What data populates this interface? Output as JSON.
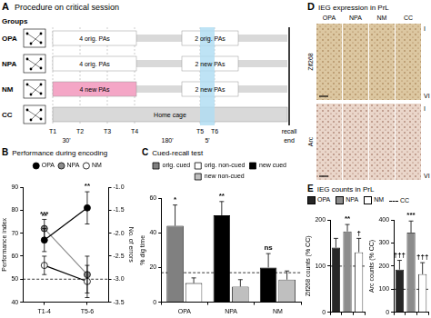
{
  "panels": {
    "A": {
      "label": "A",
      "title": "Procedure on critical session",
      "groups_label": "Groups",
      "rows": [
        {
          "group": "OPA",
          "segments": [
            {
              "text": "4 orig. PAs"
            },
            {
              "text": "2 orig. PAs"
            }
          ]
        },
        {
          "group": "NPA",
          "segments": [
            {
              "text": "4 orig. PAs"
            },
            {
              "text": "2 new PAs"
            }
          ]
        },
        {
          "group": "NM",
          "segments": [
            {
              "text": "4 new PAs",
              "color": "#f4a6c6"
            },
            {
              "text": "2 new PAs"
            }
          ]
        },
        {
          "group": "CC",
          "segments": [
            {
              "text": "Home cage",
              "color": "#d9d9d9"
            }
          ]
        }
      ],
      "time_points": [
        "T1",
        "T2",
        "T3",
        "T4",
        "T5",
        "T6"
      ],
      "intervals": [
        "30'",
        "180'",
        "5'"
      ],
      "end_labels": [
        "recall",
        "end"
      ]
    },
    "D": {
      "label": "D",
      "title": "IEG expression in PrL",
      "columns": [
        "OPA",
        "NPA",
        "NM",
        "CC"
      ],
      "rows": [
        "Zif268",
        "Arc"
      ],
      "layers": [
        "I",
        "VI"
      ]
    },
    "E": {
      "label": "E",
      "title": "IEG counts in PrL",
      "legend_items": [
        {
          "name": "OPA",
          "color": "#262626"
        },
        {
          "name": "NPA",
          "color": "#8c8c8c"
        },
        {
          "name": "NM",
          "color": "#ffffff"
        },
        {
          "name": "CC",
          "line_style": "dashed"
        }
      ]
    }
  },
  "chart_data": [
    {
      "label": "B",
      "type": "line",
      "title": "Performance during encoding",
      "categories": [
        "T1-4",
        "T5-6"
      ],
      "series": [
        {
          "name": "OPA",
          "color": "#000000",
          "marker": "circle",
          "values": [
            67,
            81
          ],
          "errors": [
            5,
            7
          ]
        },
        {
          "name": "NPA",
          "color": "#8c8c8c",
          "marker": "circle",
          "values": [
            72,
            52
          ],
          "errors": [
            4,
            8
          ]
        },
        {
          "name": "NM",
          "color": "#ffffff",
          "marker": "circle",
          "values": [
            56,
            49
          ],
          "errors": [
            4,
            7
          ]
        }
      ],
      "y_label": "Performance index",
      "ylim": [
        40,
        90
      ],
      "yticks": [
        40,
        50,
        60,
        70,
        80,
        90
      ],
      "y2_label": "No. of errors",
      "y2lim": [
        -3.5,
        -1
      ],
      "y2ticks": [
        -3.5,
        {
          "value": -3,
          "label": "-3.0"
        },
        -2.5,
        {
          "value": -2,
          "label": "-2.0"
        },
        -1.5,
        {
          "value": -1,
          "label": "-1.0"
        }
      ],
      "reference_line": {
        "value": 50
      },
      "annotations": [
        {
          "text": "***",
          "index": 0,
          "series": "NPA"
        },
        {
          "text": "**",
          "index": 0,
          "series": "OPA"
        },
        {
          "text": "**",
          "index": 1,
          "series": "OPA"
        }
      ],
      "legend": "top",
      "grid": false
    },
    {
      "label": "C",
      "type": "bar",
      "title": "Cued-recall test",
      "categories": [
        "OPA",
        "NPA",
        "NM"
      ],
      "series": [
        {
          "name": "orig. cued",
          "color": "#808080",
          "values": [
            44,
            null,
            null
          ],
          "errors": [
            12,
            null,
            null
          ]
        },
        {
          "name": "orig. non-cued",
          "color": "#ffffff",
          "values": [
            11,
            null,
            null
          ],
          "errors": [
            3,
            null,
            null
          ]
        },
        {
          "name": "new cued",
          "color": "#000000",
          "values": [
            null,
            50,
            20
          ],
          "errors": [
            null,
            8,
            8
          ]
        },
        {
          "name": "new non-cued",
          "color": "#bfbfbf",
          "values": [
            null,
            9,
            13
          ],
          "errors": [
            null,
            4,
            5
          ]
        }
      ],
      "y_label": "% dig time",
      "ylim": [
        0,
        60
      ],
      "yticks": [
        0,
        20,
        40,
        60
      ],
      "reference_line": {
        "value": 17
      },
      "annotations": [
        {
          "text": "*",
          "index": 0,
          "series": "orig. cued"
        },
        {
          "text": "**",
          "index": 1,
          "series": "new cued"
        },
        {
          "text": "ns",
          "index": 2,
          "series": "new cued"
        }
      ],
      "legend": "top",
      "grid": false
    },
    {
      "type": "bar",
      "categories": [
        null,
        null,
        null
      ],
      "values": [
        140,
        175,
        130
      ],
      "errors": [
        20,
        15,
        30
      ],
      "colors": [
        "#262626",
        "#8c8c8c",
        "#ffffff"
      ],
      "y_label": "Zif268 counts (% CC)",
      "ylim": [
        0,
        200
      ],
      "yticks": [
        0,
        100,
        200
      ],
      "reference_line": {
        "value": 100
      },
      "annotations": [
        {
          "text": "**",
          "index": 1
        },
        {
          "text": "†",
          "index": 2
        }
      ],
      "tick_labels": "y",
      "grid": false
    },
    {
      "type": "bar",
      "categories": [
        null,
        null,
        null
      ],
      "values": [
        185,
        345,
        165
      ],
      "errors": [
        40,
        50,
        50
      ],
      "colors": [
        "#262626",
        "#8c8c8c",
        "#ffffff"
      ],
      "y_label": "Arc counts (% CC)",
      "ylim": [
        0,
        400
      ],
      "yticks": [
        0,
        100,
        200,
        300,
        400
      ],
      "reference_line": {
        "value": 100
      },
      "annotations": [
        {
          "text": "***",
          "index": 1
        },
        {
          "text": "†††",
          "index": 0
        },
        {
          "text": "†††",
          "index": 2
        }
      ],
      "tick_labels": "y",
      "grid": false
    }
  ]
}
